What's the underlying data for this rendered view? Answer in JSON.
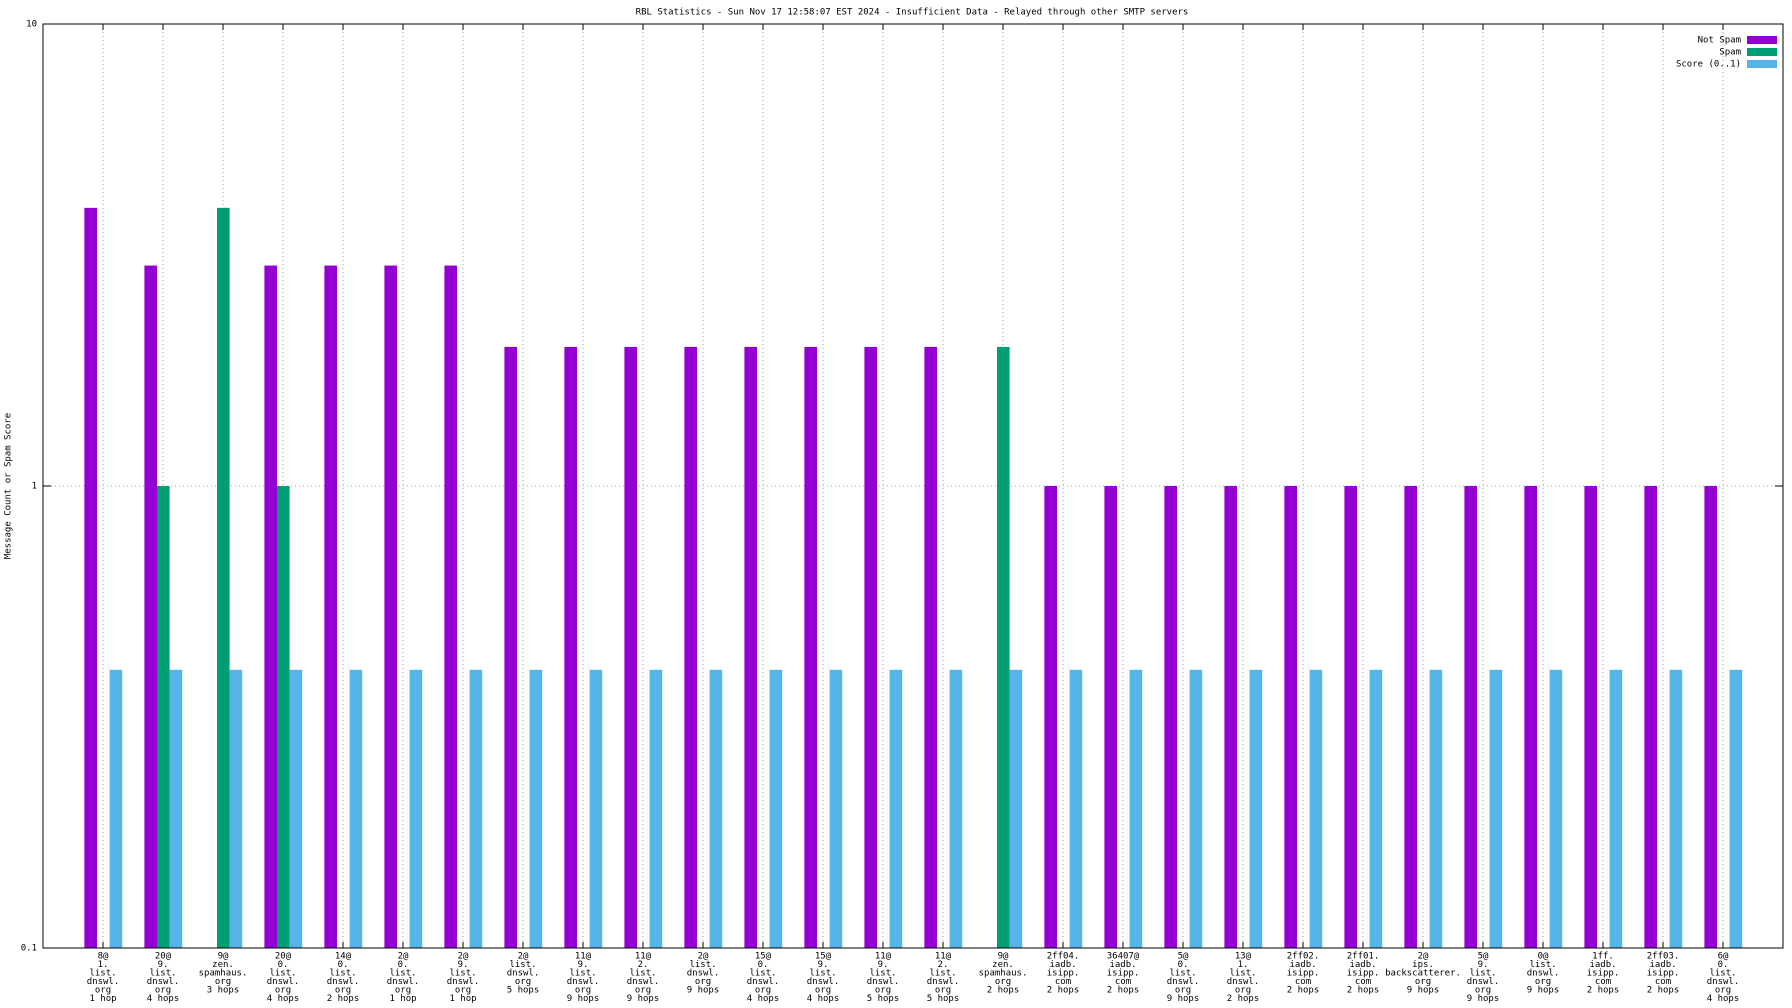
{
  "chart_data": {
    "type": "bar",
    "title": "RBL Statistics - Sun Nov 17 12:58:07 EST 2024 - Insufficient Data - Relayed through other SMTP servers",
    "y_label": "Message Count or Spam Score",
    "log_scale": true,
    "grid": true,
    "legend": "top-right",
    "categories": [
      [
        "8@",
        "1.",
        "list.",
        "dnswl.",
        "org",
        "1 hop"
      ],
      [
        "20@",
        "9.",
        "list.",
        "dnswl.",
        "org",
        "4 hops"
      ],
      [
        "9@",
        "zen.",
        "spamhaus.",
        "org",
        "3 hops"
      ],
      [
        "20@",
        "0.",
        "list.",
        "dnswl.",
        "org",
        "4 hops"
      ],
      [
        "14@",
        "0.",
        "list.",
        "dnswl.",
        "org",
        "2 hops"
      ],
      [
        "2@",
        "0.",
        "list.",
        "dnswl.",
        "org",
        "1 hop"
      ],
      [
        "2@",
        "9.",
        "list.",
        "dnswl.",
        "org",
        "1 hop"
      ],
      [
        "2@",
        "list.",
        "dnswl.",
        "org",
        "5 hops"
      ],
      [
        "11@",
        "9.",
        "list.",
        "dnswl.",
        "org",
        "9 hops"
      ],
      [
        "11@",
        "2.",
        "list.",
        "dnswl.",
        "org",
        "9 hops"
      ],
      [
        "2@",
        "list.",
        "dnswl.",
        "org",
        "9 hops"
      ],
      [
        "15@",
        "0.",
        "list.",
        "dnswl.",
        "org",
        "4 hops"
      ],
      [
        "15@",
        "9.",
        "list.",
        "dnswl.",
        "org",
        "4 hops"
      ],
      [
        "11@",
        "9.",
        "list.",
        "dnswl.",
        "org",
        "5 hops"
      ],
      [
        "11@",
        "2.",
        "list.",
        "dnswl.",
        "org",
        "5 hops"
      ],
      [
        "9@",
        "zen.",
        "spamhaus.",
        "org",
        "2 hops"
      ],
      [
        "2ff04.",
        "iadb.",
        "isipp.",
        "com",
        "2 hops"
      ],
      [
        "36407@",
        "iadb.",
        "isipp.",
        "com",
        "2 hops"
      ],
      [
        "5@",
        "0.",
        "list.",
        "dnswl.",
        "org",
        "9 hops"
      ],
      [
        "13@",
        "1.",
        "list.",
        "dnswl.",
        "org",
        "2 hops"
      ],
      [
        "2ff02.",
        "iadb.",
        "isipp.",
        "com",
        "2 hops"
      ],
      [
        "2ff01.",
        "iadb.",
        "isipp.",
        "com",
        "2 hops"
      ],
      [
        "2@",
        "ips.",
        "backscatterer.",
        "org",
        "9 hops"
      ],
      [
        "5@",
        "9.",
        "list.",
        "dnswl.",
        "org",
        "9 hops"
      ],
      [
        "0@",
        "list.",
        "dnswl.",
        "org",
        "9 hops"
      ],
      [
        "1ff.",
        "iadb.",
        "isipp.",
        "com",
        "2 hops"
      ],
      [
        "2ff03.",
        "iadb.",
        "isipp.",
        "com",
        "2 hops"
      ],
      [
        "6@",
        "0.",
        "list.",
        "dnswl.",
        "org",
        "4 hops"
      ]
    ],
    "series": [
      {
        "name": "Not Spam",
        "color": "#9400d3",
        "values": [
          4,
          3,
          null,
          3,
          3,
          3,
          3,
          2,
          2,
          2,
          2,
          2,
          2,
          2,
          2,
          null,
          1,
          1,
          1,
          1,
          1,
          1,
          1,
          1,
          1,
          1,
          1,
          1
        ]
      },
      {
        "name": "Spam",
        "color": "#009e73",
        "values": [
          null,
          1,
          4,
          1,
          null,
          null,
          null,
          null,
          null,
          null,
          null,
          null,
          null,
          null,
          null,
          2,
          null,
          null,
          null,
          null,
          null,
          null,
          null,
          null,
          null,
          null,
          null,
          null
        ]
      },
      {
        "name": "Score (0..1)",
        "color": "#56b4e9",
        "values": [
          0.4,
          0.4,
          0.4,
          0.4,
          0.4,
          0.4,
          0.4,
          0.4,
          0.4,
          0.4,
          0.4,
          0.4,
          0.4,
          0.4,
          0.4,
          0.4,
          0.4,
          0.4,
          0.4,
          0.4,
          0.4,
          0.4,
          0.4,
          0.4,
          0.4,
          0.4,
          0.4,
          0.4
        ]
      }
    ],
    "ylim": [
      0.1,
      10
    ],
    "yticks": [
      0.1,
      1,
      10
    ]
  }
}
